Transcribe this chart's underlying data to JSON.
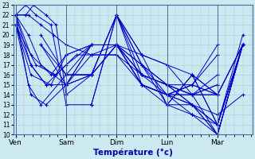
{
  "xlabel": "Température (°c)",
  "bg_color": "#cce8f0",
  "grid_color": "#a8ccd8",
  "line_color": "#0000cc",
  "ylim": [
    10,
    23
  ],
  "yticks": [
    10,
    11,
    12,
    13,
    14,
    15,
    16,
    17,
    18,
    19,
    20,
    21,
    22,
    23
  ],
  "day_labels": [
    "Ven",
    "Sam",
    "Dim",
    "Lun",
    "Mar"
  ],
  "day_positions": [
    0,
    1,
    2,
    3,
    4
  ],
  "series": [
    {
      "x": [
        0.0,
        0.25,
        0.5,
        0.75,
        1.0,
        1.5,
        2.0,
        2.5,
        3.0,
        3.5,
        4.0,
        4.5
      ],
      "y": [
        22,
        22,
        21,
        20,
        19,
        18,
        19,
        18,
        17,
        16,
        14,
        19
      ]
    },
    {
      "x": [
        0.0,
        0.2,
        0.4,
        0.7,
        1.0,
        1.5,
        2.0,
        2.5,
        3.0,
        3.5,
        4.0,
        4.5
      ],
      "y": [
        22,
        23,
        22,
        21,
        13,
        13,
        22,
        15,
        14,
        12,
        11,
        19
      ]
    },
    {
      "x": [
        0.0,
        0.2,
        0.35,
        0.6,
        0.8,
        1.0,
        1.5,
        2.0,
        2.5,
        3.0,
        3.5,
        4.0,
        4.5
      ],
      "y": [
        22,
        22,
        23,
        22,
        21,
        14,
        16,
        22,
        16,
        14,
        13,
        10,
        19
      ]
    },
    {
      "x": [
        0.0,
        0.25,
        0.5,
        0.75,
        1.0,
        1.5,
        2.0,
        2.5,
        3.0,
        3.5,
        4.0
      ],
      "y": [
        22,
        20,
        17,
        16,
        15,
        19,
        19,
        15,
        14,
        14,
        14
      ]
    },
    {
      "x": [
        0.0,
        0.3,
        0.6,
        1.0,
        1.5,
        2.0,
        2.5,
        3.0,
        3.5,
        4.0
      ],
      "y": [
        21,
        17,
        15,
        15,
        19,
        19,
        15,
        14,
        15,
        14
      ]
    },
    {
      "x": [
        0.0,
        0.25,
        0.5,
        1.0,
        1.5,
        2.0,
        2.5,
        3.0,
        3.5,
        4.0
      ],
      "y": [
        22,
        15,
        13,
        16,
        19,
        19,
        16,
        15,
        14,
        14
      ]
    },
    {
      "x": [
        0.0,
        0.3,
        0.6,
        1.0,
        1.5,
        2.0,
        2.5,
        3.0,
        3.5,
        4.0
      ],
      "y": [
        21,
        14,
        13,
        15,
        18,
        18,
        15,
        14,
        14,
        15
      ]
    },
    {
      "x": [
        0.0,
        0.3,
        0.7,
        1.0,
        1.5,
        2.0,
        2.5,
        3.0,
        3.5,
        4.0
      ],
      "y": [
        22,
        18,
        16,
        18,
        19,
        19,
        16,
        15,
        14,
        15
      ]
    },
    {
      "x": [
        0.0,
        0.4,
        0.8,
        1.2,
        1.5,
        2.0,
        2.5,
        3.0,
        3.5,
        4.0
      ],
      "y": [
        21,
        17,
        16,
        18,
        18,
        18,
        16,
        15,
        14,
        16
      ]
    },
    {
      "x": [
        0.0,
        0.3,
        0.6,
        1.0,
        1.5,
        2.0,
        2.5,
        3.0,
        3.5,
        4.0
      ],
      "y": [
        22,
        17,
        15,
        17,
        19,
        19,
        15,
        14,
        15,
        18
      ]
    },
    {
      "x": [
        0.0,
        0.3,
        0.7,
        1.0,
        1.5,
        2.0,
        2.5,
        3.0,
        3.5,
        4.0
      ],
      "y": [
        21,
        16,
        15,
        18,
        19,
        19,
        15,
        14,
        15,
        19
      ]
    },
    {
      "x": [
        0.5,
        1.0,
        1.5,
        2.0,
        2.5,
        3.0,
        3.5,
        4.0,
        4.5
      ],
      "y": [
        20,
        16,
        16,
        19,
        16,
        15,
        15,
        14,
        19
      ]
    },
    {
      "x": [
        0.5,
        1.0,
        1.5,
        2.0,
        2.5,
        3.0,
        3.5,
        4.0,
        4.5
      ],
      "y": [
        19,
        15,
        16,
        19,
        17,
        15,
        13,
        11,
        19
      ]
    },
    {
      "x": [
        0.5,
        1.0,
        1.5,
        2.0,
        2.5,
        3.0,
        3.5,
        4.0,
        4.5
      ],
      "y": [
        19,
        16,
        16,
        19,
        17,
        14,
        13,
        11,
        19
      ]
    },
    {
      "x": [
        1.0,
        1.5,
        2.0,
        2.5,
        3.0,
        3.5,
        4.0,
        4.5
      ],
      "y": [
        16,
        16,
        22,
        18,
        17,
        14,
        10,
        19
      ]
    },
    {
      "x": [
        1.0,
        1.5,
        2.0,
        2.5,
        3.0,
        3.5,
        4.0,
        4.5
      ],
      "y": [
        15,
        16,
        22,
        17,
        15,
        13,
        12,
        14
      ]
    },
    {
      "x": [
        1.5,
        2.0,
        2.5,
        3.0,
        3.5,
        4.0,
        4.5
      ],
      "y": [
        13,
        22,
        18,
        13,
        12,
        10,
        19
      ]
    },
    {
      "x": [
        2.0,
        2.5,
        3.0,
        3.5,
        4.0,
        4.5
      ],
      "y": [
        22,
        17,
        13,
        13,
        10,
        19
      ]
    },
    {
      "x": [
        2.5,
        3.0,
        3.5,
        4.0,
        4.5
      ],
      "y": [
        15,
        13,
        16,
        14,
        19
      ]
    },
    {
      "x": [
        3.0,
        3.5,
        4.0,
        4.5
      ],
      "y": [
        13,
        16,
        11,
        19
      ]
    },
    {
      "x": [
        3.5,
        4.0,
        4.5
      ],
      "y": [
        16,
        11,
        20
      ]
    }
  ]
}
